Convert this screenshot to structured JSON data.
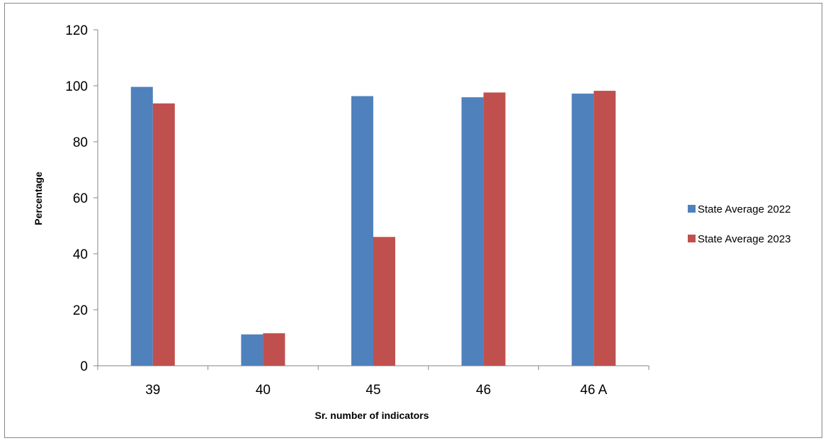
{
  "chart_data": {
    "type": "bar",
    "title": "",
    "xlabel": "Sr. number of indicators",
    "ylabel": "Percentage",
    "categories": [
      "39",
      "40",
      "45",
      "46",
      "46 A"
    ],
    "series": [
      {
        "name": "State Average 2022",
        "color": "#4F81BD",
        "values": [
          99.6,
          11.2,
          96.3,
          95.9,
          97.2
        ]
      },
      {
        "name": "State Average 2023",
        "color": "#C0504D",
        "values": [
          93.7,
          11.6,
          46.0,
          97.6,
          98.2
        ]
      }
    ],
    "ylim": [
      0,
      120
    ],
    "yticks": [
      0,
      20,
      40,
      60,
      80,
      100,
      120
    ],
    "grid": false,
    "legend_position": "right"
  }
}
